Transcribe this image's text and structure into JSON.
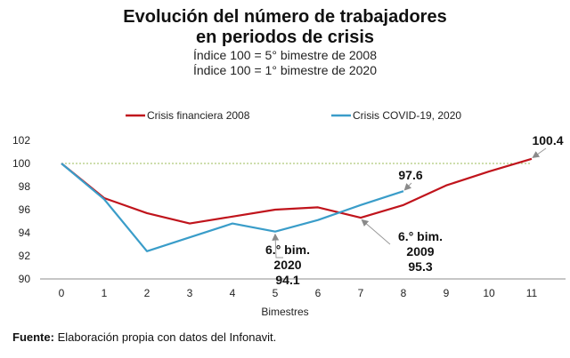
{
  "chart_data": {
    "type": "line",
    "title": "Evolución del número de trabajadores en periodos de crisis",
    "title_lines": [
      "Evolución del número de trabajadores",
      "en periodos de crisis"
    ],
    "subtitle_lines": [
      "Índice 100 = 5° bimestre de 2008",
      "Índice 100 = 1° bimestre de 2020"
    ],
    "xlabel": "Bimestres",
    "ylabel": "",
    "x": [
      0,
      1,
      2,
      3,
      4,
      5,
      6,
      7,
      8,
      9,
      10,
      11
    ],
    "x_tick_labels": [
      "0",
      "1",
      "2",
      "3",
      "4",
      "5",
      "6",
      "7",
      "8",
      "9",
      "10",
      "11"
    ],
    "y_ticks": [
      90,
      92,
      94,
      96,
      98,
      100,
      102
    ],
    "y_tick_labels": [
      "90",
      "92",
      "94",
      "96",
      "98",
      "100",
      "102"
    ],
    "ylim": [
      90,
      102
    ],
    "xlim": [
      0,
      11
    ],
    "grid": false,
    "legend_position": "top",
    "reference_line": {
      "y": 100,
      "style": "dotted",
      "color": "#9bbb59"
    },
    "series": [
      {
        "name": "Crisis financiera 2008",
        "color": "#c0141c",
        "values": [
          100,
          97.0,
          95.7,
          94.8,
          95.4,
          96.0,
          96.2,
          95.3,
          96.4,
          98.1,
          99.3,
          100.4
        ]
      },
      {
        "name": "Crisis COVID-19, 2020",
        "color": "#3a9dc9",
        "values": [
          100,
          96.9,
          92.4,
          93.6,
          94.8,
          94.1,
          95.1,
          96.4,
          97.6
        ]
      }
    ],
    "annotations": [
      {
        "id": "covid-min",
        "lines": [
          "6.° bim.",
          "2020",
          "94.1"
        ],
        "x": 5,
        "y": 94.1
      },
      {
        "id": "fin-min",
        "lines": [
          "6.° bim.",
          "2009",
          "95.3"
        ],
        "x": 7,
        "y": 95.3
      },
      {
        "id": "covid-last",
        "lines": [
          "97.6"
        ],
        "x": 8,
        "y": 97.6
      },
      {
        "id": "fin-last",
        "lines": [
          "100.4"
        ],
        "x": 11,
        "y": 100.4
      }
    ]
  },
  "source": {
    "label": "Fuente:",
    "text": " Elaboración propia con datos del Infonavit."
  }
}
